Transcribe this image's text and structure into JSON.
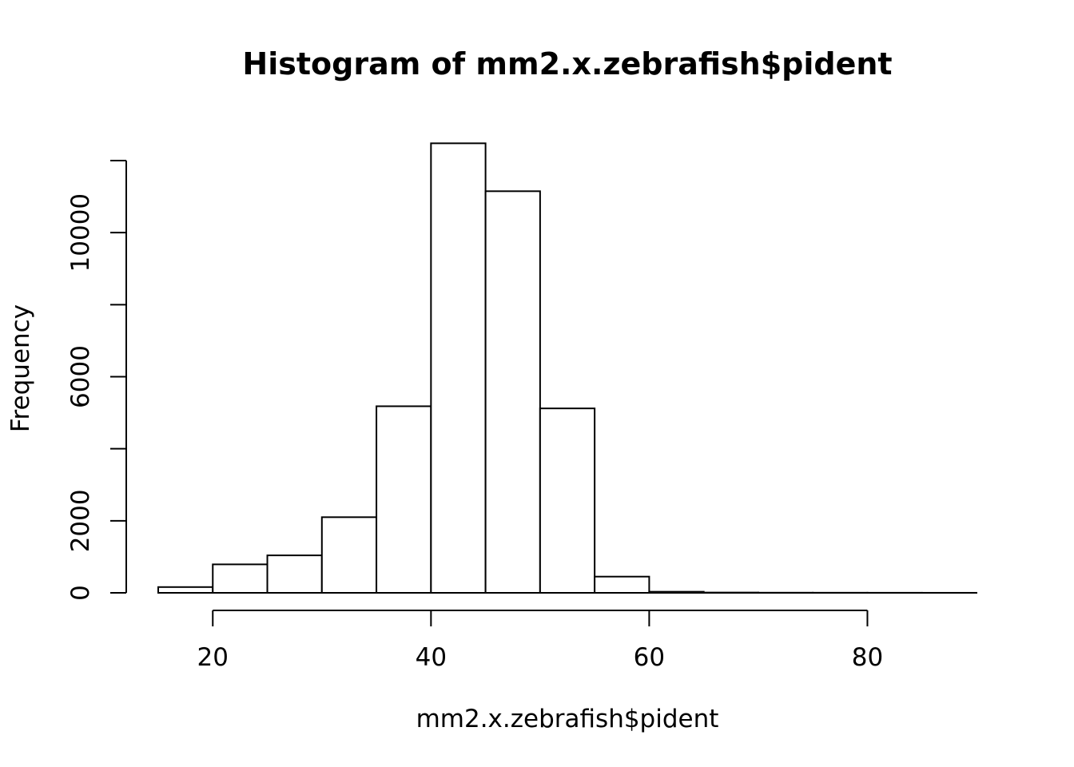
{
  "chart_data": {
    "type": "bar",
    "title": "Histogram of mm2.x.zebrafish$pident",
    "xlabel": "mm2.x.zebrafish$pident",
    "ylabel": "Frequency",
    "bin_edges": [
      15,
      20,
      25,
      30,
      35,
      40,
      45,
      50,
      55,
      60,
      65,
      70,
      75,
      80,
      85,
      90
    ],
    "values": [
      160,
      790,
      1040,
      2100,
      5180,
      12480,
      11150,
      5120,
      450,
      30,
      8,
      4,
      3,
      2,
      1
    ],
    "xlim": [
      15,
      90
    ],
    "ylim": [
      0,
      12000
    ],
    "x_ticks": [
      20,
      40,
      60,
      80
    ],
    "y_ticks": [
      0,
      2000,
      4000,
      6000,
      8000,
      10000,
      12000
    ],
    "y_tick_labels": [
      "0",
      "2000",
      "",
      "6000",
      "",
      "10000",
      ""
    ],
    "grid": false,
    "legend": "none",
    "colors": {
      "bar_fill": "#ffffff",
      "bar_stroke": "#000000"
    }
  }
}
